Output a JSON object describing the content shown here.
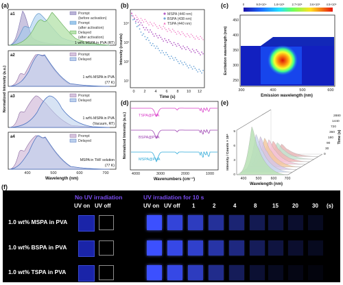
{
  "panel_a": {
    "label": "(a)",
    "sub_labels": [
      "a1",
      "a2",
      "a3",
      "a4"
    ],
    "legend_a1": [
      "Prompt",
      "(before activation)",
      "Prompt",
      "(after activation)",
      "Delayed",
      "(after activation)"
    ],
    "legend_prompt_delayed": [
      "Prompt",
      "Delayed"
    ],
    "captions": [
      "1 wt% MSPA in PVA (RT)",
      "1 wt% MSPA in PVA",
      "(77 K)",
      "1 wt% MSPA in PVA",
      "(Vacuum, RT)",
      "MSPA in THF solution",
      "(77 K)"
    ],
    "x_ticks": [
      "400",
      "500",
      "600",
      "700"
    ],
    "x_label": "Wavelength (nm)",
    "y_label": "Normalized Intensity (a.u.)"
  },
  "panel_b": {
    "label": "(b)",
    "legend": [
      "MSPA (440 nm)",
      "BSPA (438 nm)",
      "TSPA (440 nm)"
    ],
    "x_ticks": [
      "0",
      "2",
      "4",
      "6",
      "8",
      "10",
      "12"
    ],
    "x_label": "Time (s)",
    "y_label": "Intensity (counts)",
    "y_ticks": [
      "10¹",
      "10²",
      "10³",
      "10⁴"
    ]
  },
  "panel_c": {
    "label": "(c)",
    "colorbar_ticks": [
      "0",
      "9.0×10⁴",
      "1.8×10⁵",
      "2.7×10⁵",
      "3.6×10⁵",
      "4.5×10⁵"
    ],
    "y_ticks": [
      "450",
      "400",
      "350",
      "300",
      "250"
    ],
    "x_ticks": [
      "300",
      "400",
      "500",
      "600"
    ],
    "x_label": "Emission wavelength (nm)",
    "y_label": "Excitation wavelength (nm)"
  },
  "panel_d": {
    "label": "(d)",
    "traces": [
      "TSPA@PVA",
      "BSPA@PVA",
      "MSPA@PVA"
    ],
    "x_ticks": [
      "4000",
      "3000",
      "2000",
      "1000"
    ],
    "x_label": "Wavenumbers (cm⁻¹)",
    "y_label": "Normalized Intensity (a.u.)"
  },
  "panel_e": {
    "label": "(e)",
    "x_ticks": [
      "400",
      "500",
      "600",
      "700"
    ],
    "x_label": "Wavelength (nm)",
    "y_label": "Intensity / Counts × 10⁴",
    "time_ticks": [
      "0",
      "30",
      "90",
      "180",
      "360",
      "720",
      "1440",
      "2880"
    ],
    "time_label": "Time (s)",
    "z_ticks": [
      "0",
      "3",
      "6",
      "9"
    ]
  },
  "panel_f": {
    "label": "(f)",
    "no_uv_header": "No UV irradiation",
    "uv_header": "UV irradiation for 10 s",
    "uv_on": "UV on",
    "uv_off": "UV off",
    "time_cols": [
      "1",
      "2",
      "4",
      "8",
      "15",
      "20",
      "30"
    ],
    "unit": "(s)",
    "rows": [
      "1.0 wt% MSPA in PVA",
      "1.0 wt% BSPA in PVA",
      "1.0 wt% TSPA in PVA"
    ]
  }
}
